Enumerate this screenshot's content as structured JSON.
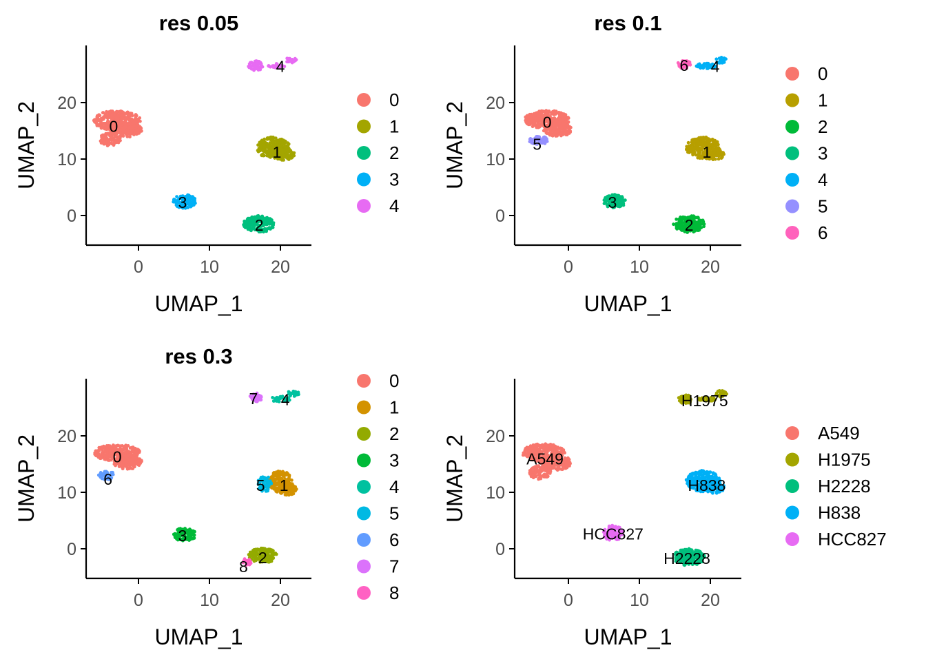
{
  "chart_data": [
    {
      "type": "scatter",
      "title": "res 0.05",
      "xlabel": "UMAP_1",
      "ylabel": "UMAP_2",
      "xlim": [
        -8,
        24
      ],
      "ylim": [
        -5,
        30
      ],
      "xticks": [
        0,
        10,
        20
      ],
      "yticks": [
        0,
        10,
        20
      ],
      "grid": false,
      "legend_position": "right",
      "series": [
        {
          "name": "0",
          "color": "#F8766D",
          "blobs": [
            {
              "x": -3,
              "y": 16.8,
              "rx": 3.3,
              "ry": 1.8
            },
            {
              "x": -1.5,
              "y": 15.2,
              "rx": 2.0,
              "ry": 1.3
            },
            {
              "x": -4,
              "y": 13.5,
              "rx": 1.5,
              "ry": 1.2
            }
          ]
        },
        {
          "name": "1",
          "color": "#A3A500",
          "blobs": [
            {
              "x": 19,
              "y": 12,
              "rx": 2.4,
              "ry": 1.9
            },
            {
              "x": 20.5,
              "y": 10.8,
              "rx": 1.5,
              "ry": 1.0
            }
          ]
        },
        {
          "name": "2",
          "color": "#00BF7D",
          "blobs": [
            {
              "x": 17,
              "y": -1.5,
              "rx": 2.2,
              "ry": 1.5
            }
          ]
        },
        {
          "name": "3",
          "color": "#00B0F6",
          "blobs": [
            {
              "x": 6.5,
              "y": 2.5,
              "rx": 1.6,
              "ry": 1.2
            }
          ]
        },
        {
          "name": "4",
          "color": "#E76BF3",
          "blobs": [
            {
              "x": 16.5,
              "y": 26.5,
              "rx": 1.0,
              "ry": 0.9
            },
            {
              "x": 19.5,
              "y": 26.5,
              "rx": 1.2,
              "ry": 0.4
            },
            {
              "x": 21.5,
              "y": 27.5,
              "rx": 0.8,
              "ry": 0.6
            }
          ]
        }
      ],
      "labels": [
        {
          "text": "0",
          "x": -3.5,
          "y": 15.8
        },
        {
          "text": "1",
          "x": 19.5,
          "y": 11.2
        },
        {
          "text": "2",
          "x": 17,
          "y": -1.7
        },
        {
          "text": "3",
          "x": 6.2,
          "y": 2.3
        },
        {
          "text": "4",
          "x": 20,
          "y": 26.4
        }
      ]
    },
    {
      "type": "scatter",
      "title": "res 0.1",
      "xlabel": "UMAP_1",
      "ylabel": "UMAP_2",
      "xlim": [
        -8,
        24
      ],
      "ylim": [
        -5,
        30
      ],
      "xticks": [
        0,
        10,
        20
      ],
      "yticks": [
        0,
        10,
        20
      ],
      "grid": false,
      "legend_position": "right",
      "series": [
        {
          "name": "0",
          "color": "#F8766D",
          "blobs": [
            {
              "x": -3,
              "y": 17,
              "rx": 3.2,
              "ry": 1.6
            },
            {
              "x": -1.5,
              "y": 15.2,
              "rx": 2.0,
              "ry": 1.2
            }
          ]
        },
        {
          "name": "1",
          "color": "#B79F00",
          "blobs": [
            {
              "x": 19,
              "y": 12,
              "rx": 2.4,
              "ry": 1.9
            },
            {
              "x": 20.5,
              "y": 10.8,
              "rx": 1.5,
              "ry": 1.0
            }
          ]
        },
        {
          "name": "2",
          "color": "#00BA38",
          "blobs": [
            {
              "x": 17,
              "y": -1.5,
              "rx": 2.2,
              "ry": 1.5
            }
          ]
        },
        {
          "name": "3",
          "color": "#00BF7D",
          "blobs": [
            {
              "x": 6.5,
              "y": 2.5,
              "rx": 1.6,
              "ry": 1.2
            }
          ]
        },
        {
          "name": "4",
          "color": "#00B0F6",
          "blobs": [
            {
              "x": 19.5,
              "y": 26.5,
              "rx": 1.5,
              "ry": 0.5
            },
            {
              "x": 21.5,
              "y": 27.5,
              "rx": 0.8,
              "ry": 0.6
            }
          ]
        },
        {
          "name": "5",
          "color": "#9590FF",
          "blobs": [
            {
              "x": -4.2,
              "y": 13.3,
              "rx": 1.3,
              "ry": 0.8
            }
          ]
        },
        {
          "name": "6",
          "color": "#FF62BC",
          "blobs": [
            {
              "x": 16.3,
              "y": 26.8,
              "rx": 0.9,
              "ry": 0.8
            }
          ]
        }
      ],
      "labels": [
        {
          "text": "0",
          "x": -3,
          "y": 16.5
        },
        {
          "text": "1",
          "x": 19.5,
          "y": 11.2
        },
        {
          "text": "2",
          "x": 17,
          "y": -1.7
        },
        {
          "text": "3",
          "x": 6.2,
          "y": 2.3
        },
        {
          "text": "4",
          "x": 20.7,
          "y": 26.4
        },
        {
          "text": "5",
          "x": -4.4,
          "y": 12.6
        },
        {
          "text": "6",
          "x": 16.3,
          "y": 26.6
        }
      ]
    },
    {
      "type": "scatter",
      "title": "res 0.3",
      "xlabel": "UMAP_1",
      "ylabel": "UMAP_2",
      "xlim": [
        -8,
        24
      ],
      "ylim": [
        -5,
        30
      ],
      "xticks": [
        0,
        10,
        20
      ],
      "yticks": [
        0,
        10,
        20
      ],
      "grid": false,
      "legend_position": "right",
      "series": [
        {
          "name": "0",
          "color": "#F8766D",
          "blobs": [
            {
              "x": -3,
              "y": 17,
              "rx": 3.2,
              "ry": 1.5
            },
            {
              "x": -1.5,
              "y": 15.3,
              "rx": 2.0,
              "ry": 1.2
            }
          ]
        },
        {
          "name": "1",
          "color": "#D39200",
          "blobs": [
            {
              "x": 20,
              "y": 11.8,
              "rx": 1.7,
              "ry": 2.0
            },
            {
              "x": 21,
              "y": 10.5,
              "rx": 1.3,
              "ry": 1.0
            }
          ]
        },
        {
          "name": "2",
          "color": "#93AA00",
          "blobs": [
            {
              "x": 17.5,
              "y": -1.2,
              "rx": 2.0,
              "ry": 1.3
            }
          ]
        },
        {
          "name": "3",
          "color": "#00BA38",
          "blobs": [
            {
              "x": 6.5,
              "y": 2.5,
              "rx": 1.6,
              "ry": 1.2
            }
          ]
        },
        {
          "name": "4",
          "color": "#00C19F",
          "blobs": [
            {
              "x": 20,
              "y": 26.5,
              "rx": 1.5,
              "ry": 0.5
            },
            {
              "x": 21.8,
              "y": 27.5,
              "rx": 0.8,
              "ry": 0.6
            }
          ]
        },
        {
          "name": "5",
          "color": "#00B9E3",
          "blobs": [
            {
              "x": 17.8,
              "y": 11.5,
              "rx": 1.0,
              "ry": 1.4
            }
          ]
        },
        {
          "name": "6",
          "color": "#619CFF",
          "blobs": [
            {
              "x": -4.5,
              "y": 13,
              "rx": 1.2,
              "ry": 0.8
            }
          ]
        },
        {
          "name": "7",
          "color": "#DB72FB",
          "blobs": [
            {
              "x": 16.5,
              "y": 26.8,
              "rx": 0.9,
              "ry": 0.8
            }
          ]
        },
        {
          "name": "8",
          "color": "#FF61C3",
          "blobs": [
            {
              "x": 15.3,
              "y": -2.3,
              "rx": 0.7,
              "ry": 0.6
            }
          ]
        }
      ],
      "labels": [
        {
          "text": "0",
          "x": -3,
          "y": 16.3
        },
        {
          "text": "1",
          "x": 20.5,
          "y": 11.2
        },
        {
          "text": "2",
          "x": 17.5,
          "y": -1.6
        },
        {
          "text": "3",
          "x": 6.2,
          "y": 2.3
        },
        {
          "text": "4",
          "x": 20.7,
          "y": 26.4
        },
        {
          "text": "5",
          "x": 17.2,
          "y": 11.2
        },
        {
          "text": "6",
          "x": -4.3,
          "y": 12.3
        },
        {
          "text": "7",
          "x": 16.2,
          "y": 26.6
        },
        {
          "text": "8",
          "x": 14.8,
          "y": -3.2
        }
      ]
    },
    {
      "type": "scatter",
      "title": "",
      "xlabel": "UMAP_1",
      "ylabel": "UMAP_2",
      "xlim": [
        -8,
        24
      ],
      "ylim": [
        -5,
        30
      ],
      "xticks": [
        0,
        10,
        20
      ],
      "yticks": [
        0,
        10,
        20
      ],
      "grid": false,
      "legend_position": "right",
      "series": [
        {
          "name": "A549",
          "color": "#F8766D",
          "blobs": [
            {
              "x": -3.5,
              "y": 17,
              "rx": 3.0,
              "ry": 1.6
            },
            {
              "x": -1.8,
              "y": 15.3,
              "rx": 2.2,
              "ry": 1.4
            },
            {
              "x": -4,
              "y": 13.5,
              "rx": 1.5,
              "ry": 1.2
            }
          ]
        },
        {
          "name": "H1975",
          "color": "#A3A500",
          "blobs": [
            {
              "x": 16.5,
              "y": 26.5,
              "rx": 1.0,
              "ry": 0.8
            },
            {
              "x": 19.5,
              "y": 26.5,
              "rx": 1.2,
              "ry": 0.4
            },
            {
              "x": 21.5,
              "y": 27.5,
              "rx": 0.8,
              "ry": 0.6
            }
          ]
        },
        {
          "name": "H2228",
          "color": "#00BF7D",
          "blobs": [
            {
              "x": 17,
              "y": -1.5,
              "rx": 2.2,
              "ry": 1.5
            }
          ]
        },
        {
          "name": "H838",
          "color": "#00B0F6",
          "blobs": [
            {
              "x": 19,
              "y": 12,
              "rx": 2.4,
              "ry": 1.9
            },
            {
              "x": 20.5,
              "y": 10.8,
              "rx": 1.5,
              "ry": 1.0
            }
          ]
        },
        {
          "name": "HCC827",
          "color": "#E76BF3",
          "blobs": [
            {
              "x": 6.3,
              "y": 2.8,
              "rx": 1.4,
              "ry": 1.4
            }
          ]
        }
      ],
      "labels": [
        {
          "text": "H1975",
          "x": 19.2,
          "y": 26.2
        },
        {
          "text": "A549",
          "x": -3.3,
          "y": 15.9
        },
        {
          "text": "H838",
          "x": 19.5,
          "y": 11.2
        },
        {
          "text": "HCC827",
          "x": 6.3,
          "y": 2.6
        },
        {
          "text": "H2228",
          "x": 16.7,
          "y": -1.7
        }
      ]
    }
  ]
}
